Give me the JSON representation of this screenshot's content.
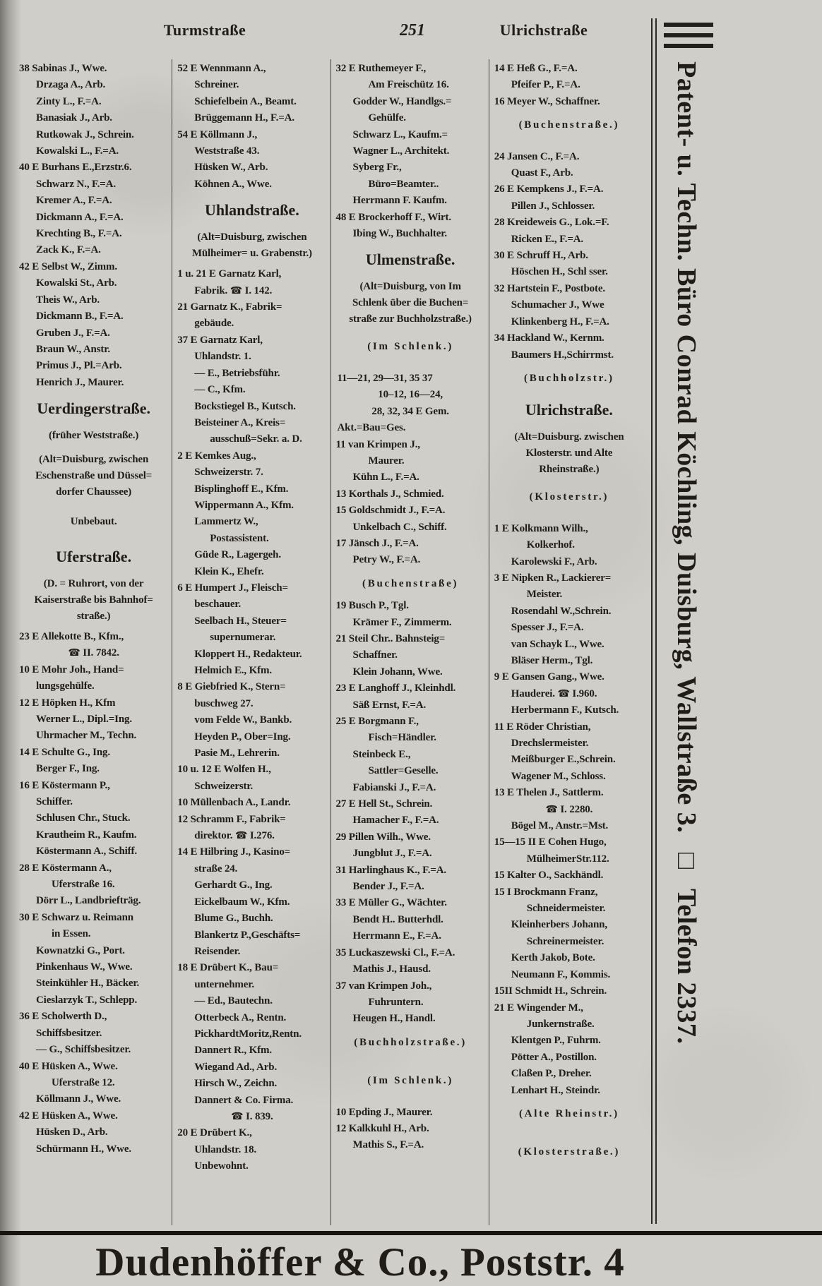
{
  "header": {
    "left_street": "Turmstraße",
    "page_number": "251",
    "right_street": "Ulrichstraße"
  },
  "icons": {
    "phone": "☎",
    "square": "□"
  },
  "colors": {
    "paper": "#d0cec9",
    "ink": "#201d19"
  },
  "columns": [
    {
      "lines": [
        {
          "t": "e",
          "s": "38 Sabinas J., Wwe."
        },
        {
          "t": "c",
          "s": "Drzaga A., Arb."
        },
        {
          "t": "c",
          "s": "Zinty L., F.=A."
        },
        {
          "t": "c",
          "s": "Banasiak J., Arb."
        },
        {
          "t": "c",
          "s": "Rutkowak J., Schrein."
        },
        {
          "t": "c",
          "s": "Kowalski L., F.=A."
        },
        {
          "t": "e",
          "s": "40 E Burhans E.,Erzstr.6."
        },
        {
          "t": "c",
          "s": "Schwarz N., F.=A."
        },
        {
          "t": "c",
          "s": "Kremer A., F.=A."
        },
        {
          "t": "c",
          "s": "Dickmann A., F.=A."
        },
        {
          "t": "c",
          "s": "Krechting B., F.=A."
        },
        {
          "t": "c",
          "s": "Zack K., F.=A."
        },
        {
          "t": "e",
          "s": "42 E Selbst W., Zimm."
        },
        {
          "t": "c",
          "s": "Kowalski St., Arb."
        },
        {
          "t": "c",
          "s": "Theis W., Arb."
        },
        {
          "t": "c",
          "s": "Dickmann B., F.=A."
        },
        {
          "t": "c",
          "s": "Gruben J., F.=A."
        },
        {
          "t": "c",
          "s": "Braun W., Anstr."
        },
        {
          "t": "c",
          "s": "Primus J., Pl.=Arb."
        },
        {
          "t": "c",
          "s": "Henrich J., Maurer."
        },
        {
          "t": "h",
          "s": "Uerdingerstraße."
        },
        {
          "t": "n",
          "s": "(früher Weststraße.)"
        },
        {
          "t": "nb",
          "s": "(Alt=Duisburg, zwischen\nEschenstraße und Düssel=\ndorfer Chaussee)"
        },
        {
          "t": "gap"
        },
        {
          "t": "ctr",
          "s": "Unbebaut."
        },
        {
          "t": "gap"
        },
        {
          "t": "h",
          "s": "Uferstraße."
        },
        {
          "t": "nb",
          "s": "(D. = Ruhrort, von der\nKaiserstraße bis Bahnhof=\nstraße.)"
        },
        {
          "t": "e",
          "s": "23 E Allekotte B., Kfm.,"
        },
        {
          "t": "tel",
          "num": "II. 7842."
        },
        {
          "t": "e",
          "s": "10 E Mohr Joh., Hand="
        },
        {
          "t": "c",
          "s": "lungsgehülfe."
        },
        {
          "t": "e",
          "s": "12 E Höpken H., Kfm"
        },
        {
          "t": "c",
          "s": "Werner L., Dipl.=Ing."
        },
        {
          "t": "c",
          "s": "Uhrmacher M., Techn."
        },
        {
          "t": "e",
          "s": "14 E Schulte G., Ing."
        },
        {
          "t": "c",
          "s": "Berger F., Ing."
        },
        {
          "t": "e",
          "s": "16 E Köstermann P.,"
        },
        {
          "t": "c",
          "s": "Schiffer."
        },
        {
          "t": "c",
          "s": "Schlusen Chr., Stuck."
        },
        {
          "t": "c",
          "s": "Krautheim R., Kaufm."
        },
        {
          "t": "c",
          "s": "Köstermann A., Schiff."
        },
        {
          "t": "e",
          "s": "28 E Köstermann A.,"
        },
        {
          "t": "c2",
          "s": "Uferstraße 16."
        },
        {
          "t": "c",
          "s": "Dörr L., Landbriefträg."
        },
        {
          "t": "e",
          "s": "30 E Schwarz u. Reimann"
        },
        {
          "t": "c2",
          "s": "in Essen."
        },
        {
          "t": "c",
          "s": "Kownatzki G., Port."
        },
        {
          "t": "c",
          "s": "Pinkenhaus W., Wwe."
        },
        {
          "t": "c",
          "s": "Steinkühler H., Bäcker."
        },
        {
          "t": "c",
          "s": "Cieslarzyk T., Schlepp."
        },
        {
          "t": "e",
          "s": "36 E Scholwerth D.,"
        },
        {
          "t": "c",
          "s": "Schiffsbesitzer."
        },
        {
          "t": "c",
          "s": "— G., Schiffsbesitzer."
        },
        {
          "t": "e",
          "s": "40 E Hüsken A., Wwe."
        },
        {
          "t": "c2",
          "s": "Uferstraße 12."
        },
        {
          "t": "c",
          "s": "Köllmann J., Wwe."
        },
        {
          "t": "e",
          "s": "42 E Hüsken A., Wwe."
        },
        {
          "t": "c",
          "s": "Hüsken D., Arb."
        },
        {
          "t": "c",
          "s": "Schürmann H., Wwe."
        }
      ]
    },
    {
      "lines": [
        {
          "t": "e",
          "s": "52 E Wennmann A.,"
        },
        {
          "t": "c",
          "s": "Schreiner."
        },
        {
          "t": "c",
          "s": "Schiefelbein A., Beamt."
        },
        {
          "t": "c",
          "s": "Brüggemann H., F.=A."
        },
        {
          "t": "e",
          "s": "54 E Köllmann J.,"
        },
        {
          "t": "c",
          "s": "Weststraße 43."
        },
        {
          "t": "c",
          "s": "Hüsken W., Arb."
        },
        {
          "t": "c",
          "s": "Köhnen A., Wwe."
        },
        {
          "t": "h",
          "s": "Uhlandstraße."
        },
        {
          "t": "nb",
          "s": "(Alt=Duisburg, zwischen\nMülheimer= u. Grabenstr.)"
        },
        {
          "t": "e",
          "s": "1 u. 21 E Garnatz Karl,"
        },
        {
          "t": "ctel",
          "pre": "Fabrik.",
          "num": "I. 142."
        },
        {
          "t": "e",
          "s": "21 Garnatz K., Fabrik="
        },
        {
          "t": "c",
          "s": "gebäude."
        },
        {
          "t": "e",
          "s": "37 E Garnatz Karl,"
        },
        {
          "t": "c",
          "s": "Uhlandstr. 1."
        },
        {
          "t": "c",
          "s": "— E., Betriebsführ."
        },
        {
          "t": "c",
          "s": "— C., Kfm."
        },
        {
          "t": "c",
          "s": "Bockstiegel B., Kutsch."
        },
        {
          "t": "c",
          "s": "Beisteiner A., Kreis="
        },
        {
          "t": "c2",
          "s": "ausschuß=Sekr. a. D."
        },
        {
          "t": "e",
          "s": "2 E Kemkes Aug.,"
        },
        {
          "t": "c",
          "s": "Schweizerstr. 7."
        },
        {
          "t": "c",
          "s": "Bisplinghoff E., Kfm."
        },
        {
          "t": "c",
          "s": "Wippermann A., Kfm."
        },
        {
          "t": "c",
          "s": "Lammertz W.,"
        },
        {
          "t": "c2",
          "s": "Postassistent."
        },
        {
          "t": "c",
          "s": "Güde R., Lagergeh."
        },
        {
          "t": "c",
          "s": "Klein K., Ehefr."
        },
        {
          "t": "e",
          "s": "6 E Humpert J., Fleisch="
        },
        {
          "t": "c",
          "s": "beschauer."
        },
        {
          "t": "c",
          "s": "Seelbach H., Steuer="
        },
        {
          "t": "c2",
          "s": "supernumerar."
        },
        {
          "t": "c",
          "s": "Kloppert H., Redakteur."
        },
        {
          "t": "c",
          "s": "Helmich E., Kfm."
        },
        {
          "t": "e",
          "s": "8 E Giebfried K., Stern="
        },
        {
          "t": "c",
          "s": "buschweg 27."
        },
        {
          "t": "c",
          "s": "vom Felde W., Bankb."
        },
        {
          "t": "c",
          "s": "Heyden P., Ober=Ing."
        },
        {
          "t": "c",
          "s": "Pasie M., Lehrerin."
        },
        {
          "t": "e",
          "s": "10 u. 12 E Wolfen H.,"
        },
        {
          "t": "c",
          "s": "Schweizerstr."
        },
        {
          "t": "e",
          "s": "10 Müllenbach A., Landr."
        },
        {
          "t": "e",
          "s": "12 Schramm F., Fabrik="
        },
        {
          "t": "ctel",
          "pre": "direktor.",
          "num": "I.276."
        },
        {
          "t": "e",
          "s": "14 E Hilbring J., Kasino="
        },
        {
          "t": "c",
          "s": "straße 24."
        },
        {
          "t": "c",
          "s": "Gerhardt G., Ing."
        },
        {
          "t": "c",
          "s": "Eickelbaum W., Kfm."
        },
        {
          "t": "c",
          "s": "Blume G., Buchh."
        },
        {
          "t": "c",
          "s": "Blankertz P.,Geschäfts="
        },
        {
          "t": "c",
          "s": "Reisender."
        },
        {
          "t": "e",
          "s": "18 E Drübert K., Bau="
        },
        {
          "t": "c",
          "s": "unternehmer."
        },
        {
          "t": "c",
          "s": "— Ed., Bautechn."
        },
        {
          "t": "c",
          "s": "Otterbeck A., Rentn."
        },
        {
          "t": "c",
          "s": "PickhardtMoritz,Rentn."
        },
        {
          "t": "c",
          "s": "Dannert R., Kfm."
        },
        {
          "t": "c",
          "s": "Wiegand Ad., Arb."
        },
        {
          "t": "c",
          "s": "Hirsch W., Zeichn."
        },
        {
          "t": "c",
          "s": "Dannert & Co. Firma."
        },
        {
          "t": "tel",
          "num": "I. 839."
        },
        {
          "t": "e",
          "s": "20 E Drübert K.,"
        },
        {
          "t": "c",
          "s": "Uhlandstr. 18."
        },
        {
          "t": "c",
          "s": "Unbewohnt."
        }
      ]
    },
    {
      "lines": [
        {
          "t": "e",
          "s": "32 E Ruthemeyer F.,"
        },
        {
          "t": "c2",
          "s": "Am Freischütz 16."
        },
        {
          "t": "c",
          "s": "Godder W., Handlgs.="
        },
        {
          "t": "c2",
          "s": "Gehülfe."
        },
        {
          "t": "c",
          "s": "Schwarz L., Kaufm.="
        },
        {
          "t": "c",
          "s": "Wagner L., Architekt."
        },
        {
          "t": "c",
          "s": "Syberg Fr.,"
        },
        {
          "t": "c2",
          "s": "Büro=Beamter.."
        },
        {
          "t": "c",
          "s": "Herrmann F. Kaufm."
        },
        {
          "t": "e",
          "s": "48 E Brockerhoff F., Wirt."
        },
        {
          "t": "c",
          "s": "Ibing W., Buchhalter."
        },
        {
          "t": "h",
          "s": "Ulmenstraße."
        },
        {
          "t": "nb",
          "s": "(Alt=Duisburg, von Im\nSchlenk über die Buchen=\nstraße zur Buchholzstraße.)"
        },
        {
          "t": "nsp",
          "s": "(Im Schlenk.)"
        },
        {
          "t": "gap"
        },
        {
          "t": "c0",
          "s": "11—21, 29—31, 35 37"
        },
        {
          "t": "ctr",
          "s": "10–12, 16—24,"
        },
        {
          "t": "ctr",
          "s": "28, 32, 34 E Gem."
        },
        {
          "t": "c0",
          "s": "Akt.=Bau=Ges."
        },
        {
          "t": "e",
          "s": "11 van Krimpen J.,"
        },
        {
          "t": "c2",
          "s": "Maurer."
        },
        {
          "t": "c",
          "s": "Kühn L., F.=A."
        },
        {
          "t": "e",
          "s": "13 Korthals J., Schmied."
        },
        {
          "t": "e",
          "s": "15 Goldschmidt J., F.=A."
        },
        {
          "t": "c",
          "s": "Unkelbach C., Schiff."
        },
        {
          "t": "e",
          "s": "17 Jänsch J., F.=A."
        },
        {
          "t": "c",
          "s": "Petry W., F.=A."
        },
        {
          "t": "nsp",
          "s": "(Buchenstraße)"
        },
        {
          "t": "e",
          "s": "19 Busch P., Tgl."
        },
        {
          "t": "c",
          "s": "Krämer F., Zimmerm."
        },
        {
          "t": "e",
          "s": "21 Steil Chr.. Bahnsteig="
        },
        {
          "t": "c",
          "s": "Schaffner."
        },
        {
          "t": "c",
          "s": "Klein Johann, Wwe."
        },
        {
          "t": "e",
          "s": "23 E Langhoff J., Kleinhdl."
        },
        {
          "t": "c",
          "s": "Säß Ernst, F.=A."
        },
        {
          "t": "e",
          "s": "25 E Borgmann F.,"
        },
        {
          "t": "c2",
          "s": "Fisch=Händler."
        },
        {
          "t": "c",
          "s": "Steinbeck E.,"
        },
        {
          "t": "c2",
          "s": "Sattler=Geselle."
        },
        {
          "t": "c",
          "s": "Fabianski J., F.=A."
        },
        {
          "t": "e",
          "s": "27 E Hell St., Schrein."
        },
        {
          "t": "c",
          "s": "Hamacher F., F.=A."
        },
        {
          "t": "e",
          "s": "29 Pillen Wilh., Wwe."
        },
        {
          "t": "c",
          "s": "Jungblut J., F.=A."
        },
        {
          "t": "e",
          "s": "31 Harlinghaus K., F.=A."
        },
        {
          "t": "c",
          "s": "Bender J., F.=A."
        },
        {
          "t": "e",
          "s": "33 E Müller G., Wächter."
        },
        {
          "t": "c",
          "s": "Bendt H.. Butterhdl."
        },
        {
          "t": "c",
          "s": "Herrmann E., F.=A."
        },
        {
          "t": "e",
          "s": "35 Luckaszewski Cl., F.=A."
        },
        {
          "t": "c",
          "s": "Mathis J., Hausd."
        },
        {
          "t": "e",
          "s": "37 van Krimpen Joh.,"
        },
        {
          "t": "c2",
          "s": "Fuhruntern."
        },
        {
          "t": "c",
          "s": "Heugen H., Handl."
        },
        {
          "t": "nsp",
          "s": "(Buchholzstraße.)"
        },
        {
          "t": "gap"
        },
        {
          "t": "nsp",
          "s": "(Im Schlenk.)"
        },
        {
          "t": "gap"
        },
        {
          "t": "e",
          "s": "10 Epding J., Maurer."
        },
        {
          "t": "e",
          "s": "12 Kalkkuhl H., Arb."
        },
        {
          "t": "c",
          "s": "Mathis S., F.=A."
        }
      ]
    },
    {
      "lines": [
        {
          "t": "e",
          "s": "14 E Heß G., F.=A."
        },
        {
          "t": "c",
          "s": "Pfeifer P., F.=A."
        },
        {
          "t": "e",
          "s": "16 Meyer W., Schaffner."
        },
        {
          "t": "nsp",
          "s": "(Buchenstraße.)"
        },
        {
          "t": "gap"
        },
        {
          "t": "e",
          "s": "24 Jansen C., F.=A."
        },
        {
          "t": "c",
          "s": "Quast F., Arb."
        },
        {
          "t": "e",
          "s": "26 E Kempkens J., F.=A."
        },
        {
          "t": "c",
          "s": "Pillen J., Schlosser."
        },
        {
          "t": "e",
          "s": "28 Kreideweis G., Lok.=F."
        },
        {
          "t": "c",
          "s": "Ricken E., F.=A."
        },
        {
          "t": "e",
          "s": "30 E Schruff H., Arb."
        },
        {
          "t": "c",
          "s": "Höschen H., Schl sser."
        },
        {
          "t": "e",
          "s": "32 Hartstein F., Postbote."
        },
        {
          "t": "c",
          "s": "Schumacher J., Wwe"
        },
        {
          "t": "c",
          "s": "Klinkenberg H., F.=A."
        },
        {
          "t": "e",
          "s": "34 Hackland W., Kernm."
        },
        {
          "t": "c",
          "s": "Baumers H.,Schirrmst."
        },
        {
          "t": "nsp",
          "s": "(Buchholzstr.)"
        },
        {
          "t": "h",
          "s": "Ulrichstraße."
        },
        {
          "t": "nb",
          "s": "(Alt=Duisburg. zwischen\nKlosterstr. und Alte\nRheinstraße.)"
        },
        {
          "t": "nsp",
          "s": "(Klosterstr.)"
        },
        {
          "t": "gap"
        },
        {
          "t": "e",
          "s": "1 E Kolkmann Wilh.,"
        },
        {
          "t": "c2",
          "s": "Kolkerhof."
        },
        {
          "t": "c",
          "s": "Karolewski F., Arb."
        },
        {
          "t": "e",
          "s": "3 E Nipken R., Lackierer="
        },
        {
          "t": "c2",
          "s": "Meister."
        },
        {
          "t": "c",
          "s": "Rosendahl W.,Schrein."
        },
        {
          "t": "c",
          "s": "Spesser J., F.=A."
        },
        {
          "t": "c",
          "s": "van Schayk L., Wwe."
        },
        {
          "t": "c",
          "s": "Bläser Herm., Tgl."
        },
        {
          "t": "e",
          "s": "9 E Gansen Gang., Wwe."
        },
        {
          "t": "ctel",
          "pre": "Hauderei.",
          "num": "I.960."
        },
        {
          "t": "c",
          "s": "Herbermann F., Kutsch."
        },
        {
          "t": "e",
          "s": "11 E Röder Christian,"
        },
        {
          "t": "c",
          "s": "Drechslermeister."
        },
        {
          "t": "c",
          "s": "Meißburger E.,Schrein."
        },
        {
          "t": "c",
          "s": "Wagener M., Schloss."
        },
        {
          "t": "e",
          "s": "13 E Thelen J., Sattlerm."
        },
        {
          "t": "tel",
          "num": "I. 2280."
        },
        {
          "t": "c",
          "s": "Bögel M., Anstr.=Mst."
        },
        {
          "t": "e",
          "s": "15—15 II E Cohen Hugo,"
        },
        {
          "t": "c2",
          "s": "MülheimerStr.112."
        },
        {
          "t": "e",
          "s": "15 Kalter O., Sackhändl."
        },
        {
          "t": "e",
          "s": "15 I Brockmann Franz,"
        },
        {
          "t": "c2",
          "s": "Schneidermeister."
        },
        {
          "t": "c",
          "s": "Kleinherbers Johann,"
        },
        {
          "t": "c2",
          "s": "Schreinermeister."
        },
        {
          "t": "c",
          "s": "Kerth Jakob, Bote."
        },
        {
          "t": "c",
          "s": "Neumann F., Kommis."
        },
        {
          "t": "e",
          "s": "15II Schmidt H., Schrein."
        },
        {
          "t": "e",
          "s": "21 E Wingender M.,"
        },
        {
          "t": "c2",
          "s": "Junkernstraße."
        },
        {
          "t": "c",
          "s": "Klentgen P., Fuhrm."
        },
        {
          "t": "c",
          "s": "Pötter A., Postillon."
        },
        {
          "t": "c",
          "s": "Claßen P., Dreher."
        },
        {
          "t": "c",
          "s": "Lenhart H., Steindr."
        },
        {
          "t": "nsp",
          "s": "(Alte Rheinstr.)"
        },
        {
          "t": "gap"
        },
        {
          "t": "nsp",
          "s": "(Klosterstraße.)"
        }
      ]
    }
  ],
  "sidebar_ad": {
    "line1": "Patent- u. Techn. Büro Conrad Köchling, Duisburg, Wallstraße 3.",
    "square": "□",
    "line2": "Telefon 2337."
  },
  "footer_ad": {
    "text": "Dudenhöffer & Co., Poststr. 4"
  }
}
